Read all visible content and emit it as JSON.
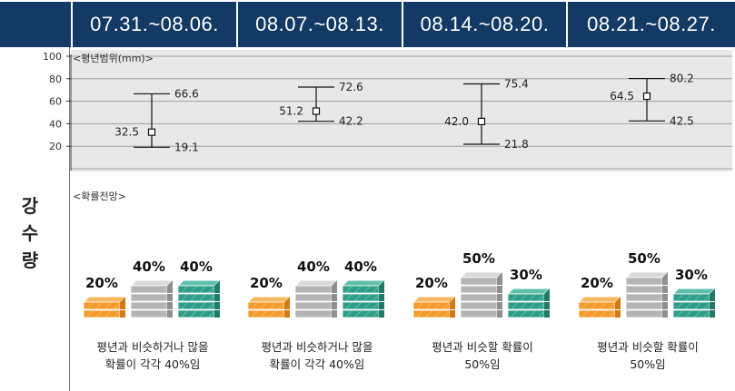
{
  "header": {
    "weeks": [
      "07.31.~08.06.",
      "08.07.~08.13.",
      "08.14.~08.20.",
      "08.21.~08.27."
    ]
  },
  "side_label": [
    "강",
    "수",
    "량"
  ],
  "range_title": "<평년범위(mm)>",
  "prob_title": "<확률전망>",
  "chart_data": {
    "type": "scatter",
    "title": "<평년범위(mm)>",
    "categories": [
      "07.31.~08.06.",
      "08.07.~08.13.",
      "08.14.~08.20.",
      "08.21.~08.27."
    ],
    "ylim": [
      0,
      100
    ],
    "yticks": [
      20,
      40,
      60,
      80,
      100
    ],
    "series": [
      {
        "values_mid": [
          32.5,
          51.2,
          42.0,
          64.5
        ],
        "values_high": [
          66.6,
          72.6,
          75.4,
          80.2
        ],
        "values_low": [
          19.1,
          42.2,
          21.8,
          42.5
        ]
      }
    ],
    "labels": {
      "mid": [
        "32.5",
        "51.2",
        "42.0",
        "64.5"
      ],
      "high": [
        "66.6",
        "72.6",
        "75.4",
        "80.2"
      ],
      "low": [
        "19.1",
        "42.2",
        "21.8",
        "42.5"
      ]
    },
    "grid": true
  },
  "probabilities": [
    {
      "below": "20%",
      "normal": "40%",
      "above": "40%",
      "below_v": 20,
      "normal_v": 40,
      "above_v": 40,
      "caption_line1": "평년과 비슷하거나 많을",
      "caption_line2": "확률이 각각 40%임"
    },
    {
      "below": "20%",
      "normal": "40%",
      "above": "40%",
      "below_v": 20,
      "normal_v": 40,
      "above_v": 40,
      "caption_line1": "평년과 비슷하거나 많을",
      "caption_line2": "확률이 각각 40%임"
    },
    {
      "below": "20%",
      "normal": "50%",
      "above": "30%",
      "below_v": 20,
      "normal_v": 50,
      "above_v": 30,
      "caption_line1": "평년과 비슷할 확률이",
      "caption_line2": "50%임"
    },
    {
      "below": "20%",
      "normal": "50%",
      "above": "30%",
      "below_v": 20,
      "normal_v": 50,
      "above_v": 30,
      "caption_line1": "평년과 비슷할 확률이",
      "caption_line2": "50%임"
    }
  ],
  "colors": {
    "header": "#123a64",
    "below": "#f39a2c",
    "normal": "#b5b5b5",
    "above": "#2e9c86"
  }
}
